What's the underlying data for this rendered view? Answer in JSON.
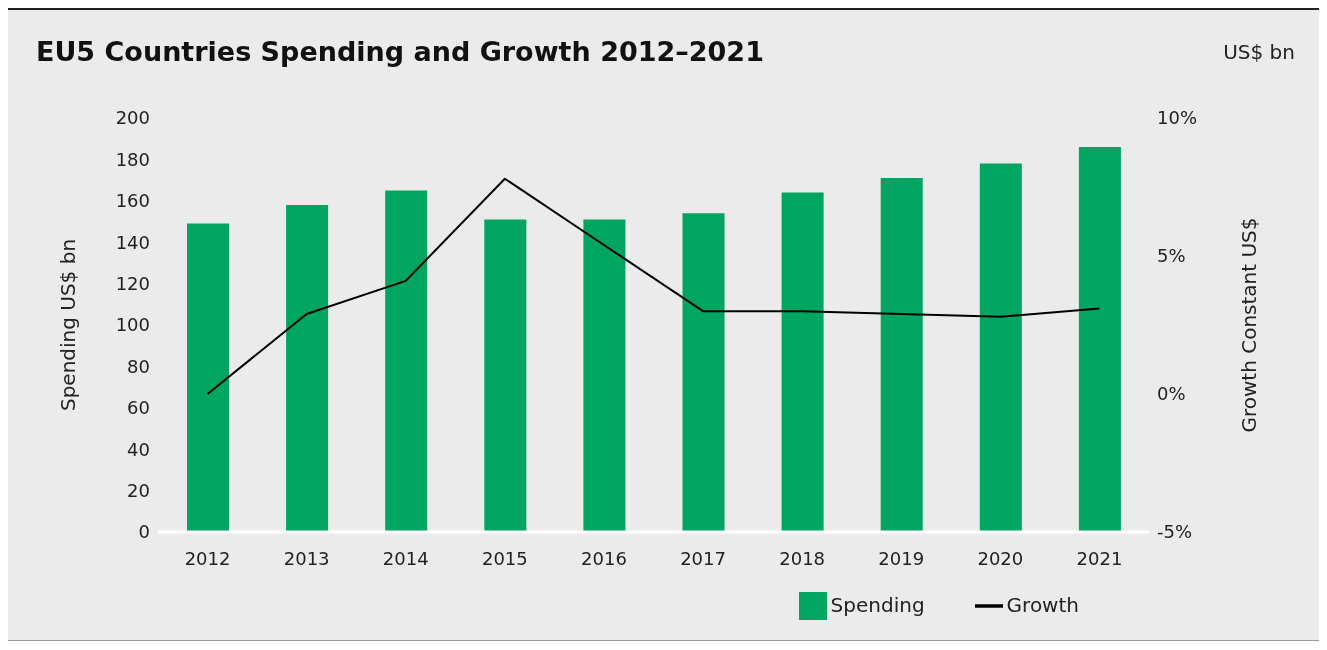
{
  "chart_data": {
    "type": "bar",
    "title": "EU5 Countries Spending and Growth 2012–2021",
    "subtitle": "US$ bn",
    "ylabel": "Spending US$ bn",
    "y2label": "Growth Constant US$",
    "categories": [
      "2012",
      "2013",
      "2014",
      "2015",
      "2016",
      "2017",
      "2018",
      "2019",
      "2020",
      "2021"
    ],
    "series": [
      {
        "name": "Spending",
        "color": "#00a562",
        "values": [
          149,
          158,
          165,
          151,
          151,
          154,
          164,
          171,
          178,
          186
        ]
      },
      {
        "name": "Growth",
        "type": "line",
        "axis": "y2",
        "color": "#000000",
        "values": [
          0,
          2.9,
          4.1,
          7.8,
          5.4,
          3.0,
          3.0,
          2.9,
          2.8,
          3.1
        ]
      }
    ],
    "ylim": [
      0,
      200
    ],
    "yticks": [
      0,
      20,
      40,
      60,
      80,
      100,
      120,
      140,
      160,
      180,
      200
    ],
    "y2lim": [
      -5,
      10
    ],
    "y2ticks": [
      {
        "value": -5,
        "label": "-5%"
      },
      {
        "value": 0,
        "label": "0%"
      },
      {
        "value": 5,
        "label": "5%"
      },
      {
        "value": 10,
        "label": "10%"
      }
    ],
    "grid": false,
    "legend": "bottom right",
    "marker": "none"
  }
}
